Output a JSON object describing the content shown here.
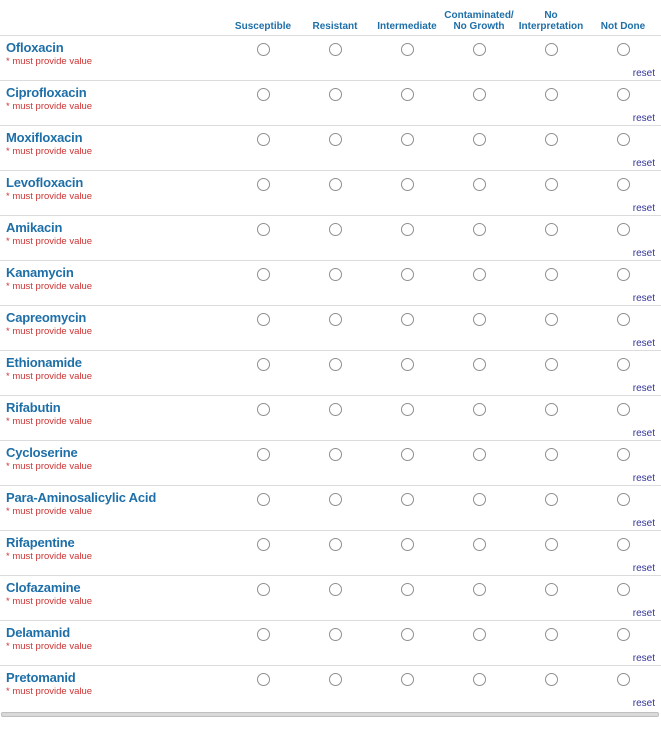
{
  "matrix": {
    "columns": [
      {
        "id": "susceptible",
        "label": "Susceptible"
      },
      {
        "id": "resistant",
        "label": "Resistant"
      },
      {
        "id": "intermediate",
        "label": "Intermediate"
      },
      {
        "id": "contaminated-no-growth",
        "label": "Contaminated/\nNo Growth"
      },
      {
        "id": "no-interpretation",
        "label": "No\nInterpretation"
      },
      {
        "id": "not-done",
        "label": "Not Done"
      }
    ],
    "required_label": "* must provide value",
    "reset_label": "reset",
    "rows": [
      {
        "name": "Ofloxacin",
        "selected": null
      },
      {
        "name": "Ciprofloxacin",
        "selected": null
      },
      {
        "name": "Moxifloxacin",
        "selected": null
      },
      {
        "name": "Levofloxacin",
        "selected": null
      },
      {
        "name": "Amikacin",
        "selected": null
      },
      {
        "name": "Kanamycin",
        "selected": null
      },
      {
        "name": "Capreomycin",
        "selected": null
      },
      {
        "name": "Ethionamide",
        "selected": null
      },
      {
        "name": "Rifabutin",
        "selected": null
      },
      {
        "name": "Cycloserine",
        "selected": null
      },
      {
        "name": "Para-Aminosalicylic Acid",
        "selected": null
      },
      {
        "name": "Rifapentine",
        "selected": null
      },
      {
        "name": "Clofazamine",
        "selected": null
      },
      {
        "name": "Delamanid",
        "selected": null
      },
      {
        "name": "Pretomanid",
        "selected": null
      }
    ]
  },
  "colors": {
    "label_blue": "#1e6fa8",
    "required_red": "#cc3333",
    "reset_navy": "#333399",
    "divider": "#dcdcdc",
    "radio_border": "#8f8f8f",
    "bar_bg": "#d9d9d9",
    "bar_border": "#bfbfbf",
    "page_bg": "#ffffff"
  }
}
